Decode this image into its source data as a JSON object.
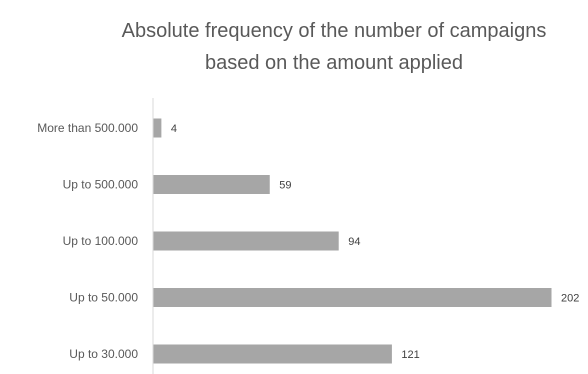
{
  "chart_data": {
    "type": "bar",
    "orientation": "horizontal",
    "title_lines": [
      "Absolute frequency of the number of campaigns",
      "based on the amount applied"
    ],
    "categories": [
      "More than 500.000",
      "Up to 500.000",
      "Up to 100.000",
      "Up to 50.000",
      "Up to 30.000"
    ],
    "values": [
      4,
      59,
      94,
      202,
      121
    ],
    "data_labels": [
      "4",
      "59",
      "94",
      "202",
      "121"
    ],
    "xlabel": "",
    "ylabel": "",
    "xlim": [
      0,
      202
    ],
    "grid": false,
    "bar_color": "#a6a6a6",
    "axis_color": "#d9d9d9",
    "text_color": "#595959"
  }
}
